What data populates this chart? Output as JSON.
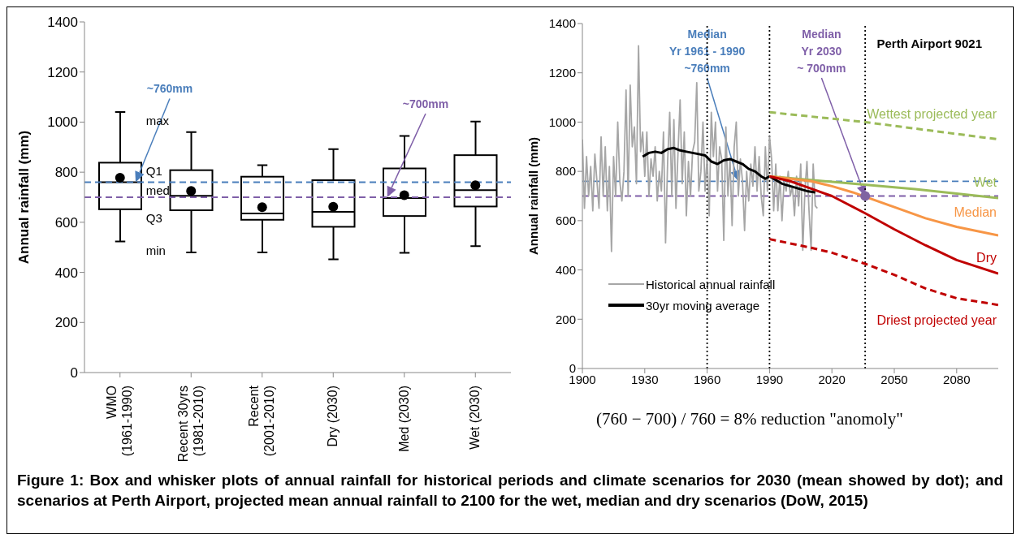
{
  "chart_data": [
    {
      "type": "box",
      "ylabel": "Annual rainfall (mm)",
      "categories": [
        "WMO\n(1961-1990)",
        "Recent 30yrs\n(1981-2010)",
        "Recent\n(2001-2010)",
        "Dry (2030)",
        "Med (2030)",
        "Wet (2030)"
      ],
      "boxes": [
        {
          "low": 523,
          "q1": 652,
          "median": 760,
          "q3": 838,
          "high": 1040
        },
        {
          "low": 480,
          "q1": 648,
          "median": 706,
          "q3": 808,
          "high": 960
        },
        {
          "low": 480,
          "q1": 610,
          "median": 635,
          "q3": 782,
          "high": 828
        },
        {
          "low": 452,
          "q1": 582,
          "median": 642,
          "q3": 768,
          "high": 892
        },
        {
          "low": 478,
          "q1": 625,
          "median": 697,
          "q3": 815,
          "high": 945
        },
        {
          "low": 505,
          "q1": 663,
          "median": 728,
          "q3": 868,
          "high": 1002
        }
      ],
      "series": [
        {
          "type": "scatter",
          "color": "#000000",
          "x": [
            "WMO\n(1961-1990)",
            "Recent 30yrs\n(1981-2010)",
            "Recent\n(2001-2010)",
            "Dry (2030)",
            "Med (2030)",
            "Wet (2030)"
          ],
          "values": [
            778,
            725,
            660,
            662,
            708,
            748
          ]
        }
      ],
      "ylim": [
        0,
        1400
      ],
      "yticks": [
        0,
        200,
        400,
        600,
        800,
        1000,
        1200,
        1400
      ],
      "ref_lines": [
        {
          "axis": "y",
          "value": 760,
          "label": "~760mm",
          "color": "#4a7ebb",
          "line_style": "dashed"
        },
        {
          "axis": "y",
          "value": 700,
          "label": "~700mm",
          "color": "#7f5fa8",
          "line_style": "dashed"
        }
      ],
      "annotations": [
        {
          "text": "max",
          "x": "WMO\n(1961-1990)",
          "y": 1040
        },
        {
          "text": "Q1",
          "x": "WMO\n(1961-1990)",
          "y": 838
        },
        {
          "text": "med",
          "x": "WMO\n(1961-1990)",
          "y": 760
        },
        {
          "text": "Q3",
          "x": "WMO\n(1961-1990)",
          "y": 652
        },
        {
          "text": "min",
          "x": "WMO\n(1961-1990)",
          "y": 523
        },
        "Figure 1: Box and whisker plots of annual rainfall for historical periods and climate scenarios for 2030 (mean showed by dot); and scenarios at Perth Airport, projected mean annual rainfall to 2100 for the wet, median and dry scenarios (DoW, 2015)"
      ]
    },
    {
      "type": "line",
      "title": "Perth Airport 9021",
      "ylabel": "Annual rainfall (mm)",
      "xlim": [
        1900,
        2100
      ],
      "xticks": [
        1900,
        1930,
        1960,
        1990,
        2020,
        2050,
        2080
      ],
      "ylim": [
        0,
        1400
      ],
      "yticks": [
        0,
        200,
        400,
        600,
        800,
        1000,
        1200,
        1400
      ],
      "legend": "bottom left",
      "series": [
        {
          "name": "Historical annual rainfall",
          "color": "#a6a6a6",
          "x": [
            1900,
            1901,
            1902,
            1903,
            1904,
            1905,
            1906,
            1907,
            1908,
            1909,
            1910,
            1911,
            1912,
            1913,
            1914,
            1915,
            1916,
            1917,
            1918,
            1919,
            1920,
            1921,
            1922,
            1923,
            1924,
            1925,
            1926,
            1927,
            1928,
            1929,
            1930,
            1931,
            1932,
            1933,
            1934,
            1935,
            1936,
            1937,
            1938,
            1939,
            1940,
            1941,
            1942,
            1943,
            1944,
            1945,
            1946,
            1947,
            1948,
            1949,
            1950,
            1951,
            1952,
            1953,
            1954,
            1955,
            1956,
            1957,
            1958,
            1959,
            1960,
            1961,
            1962,
            1963,
            1964,
            1965,
            1966,
            1967,
            1968,
            1969,
            1970,
            1971,
            1972,
            1973,
            1974,
            1975,
            1976,
            1977,
            1978,
            1979,
            1980,
            1981,
            1982,
            1983,
            1984,
            1985,
            1986,
            1987,
            1988,
            1989,
            1990,
            1991,
            1992,
            1993,
            1994,
            1995,
            1996,
            1997,
            1998,
            1999,
            2000,
            2001,
            2002,
            2003,
            2004,
            2005,
            2006,
            2007,
            2008,
            2009,
            2010,
            2011,
            2012,
            2013
          ],
          "values": [
            930,
            650,
            860,
            700,
            820,
            640,
            870,
            760,
            650,
            940,
            700,
            900,
            640,
            820,
            475,
            860,
            700,
            1000,
            760,
            680,
            800,
            1130,
            700,
            1150,
            900,
            980,
            750,
            1310,
            880,
            960,
            780,
            960,
            700,
            850,
            780,
            900,
            680,
            800,
            720,
            960,
            510,
            840,
            1040,
            700,
            1010,
            650,
            880,
            1090,
            750,
            960,
            620,
            840,
            700,
            880,
            920,
            1160,
            720,
            800,
            1000,
            720,
            860,
            620,
            1040,
            860,
            1000,
            720,
            900,
            850,
            520,
            980,
            700,
            850,
            580,
            900,
            1000,
            700,
            850,
            760,
            560,
            800,
            680,
            830,
            740,
            900,
            720,
            860,
            700,
            620,
            900,
            720,
            940,
            850,
            640,
            830,
            640,
            780,
            600,
            760,
            720,
            800,
            700,
            740,
            620,
            780,
            660,
            830,
            480,
            720,
            840,
            640,
            480,
            830,
            660,
            650
          ]
        },
        {
          "name": "30yr moving average",
          "color": "#000000",
          "x": [
            1929,
            1932,
            1935,
            1938,
            1941,
            1944,
            1947,
            1950,
            1953,
            1956,
            1959,
            1962,
            1965,
            1968,
            1971,
            1974,
            1977,
            1980,
            1983,
            1986,
            1988,
            1990,
            1993,
            1996,
            2000,
            2004,
            2008,
            2012
          ],
          "values": [
            860,
            875,
            880,
            875,
            890,
            895,
            885,
            880,
            875,
            870,
            865,
            840,
            830,
            845,
            850,
            840,
            830,
            810,
            800,
            780,
            770,
            780,
            765,
            750,
            740,
            730,
            720,
            715
          ]
        },
        {
          "name": "Wettest projected year",
          "color": "#9bbb59",
          "line_style": "dashed",
          "x": [
            1990,
            2036,
            2100
          ],
          "values": [
            1040,
            1000,
            930
          ]
        },
        {
          "name": "Wet",
          "color": "#9bbb59",
          "x": [
            1990,
            2060,
            2100
          ],
          "values": [
            780,
            728,
            692
          ]
        },
        {
          "name": "Median",
          "color": "#f79646",
          "x": [
            1990,
            2010,
            2020,
            2030,
            2050,
            2065,
            2080,
            2100
          ],
          "values": [
            780,
            760,
            740,
            715,
            655,
            610,
            575,
            540
          ]
        },
        {
          "name": "Dry",
          "color": "#c00000",
          "x": [
            1990,
            2000,
            2010,
            2020,
            2036,
            2050,
            2065,
            2080,
            2100
          ],
          "values": [
            780,
            760,
            730,
            700,
            630,
            565,
            500,
            440,
            385
          ]
        },
        {
          "name": "Driest projected year",
          "color": "#c00000",
          "line_style": "dashed",
          "x": [
            1990,
            2010,
            2020,
            2036,
            2050,
            2065,
            2080,
            2100
          ],
          "values": [
            525,
            490,
            470,
            425,
            380,
            325,
            285,
            258
          ]
        },
        {
          "type": "scatter",
          "color": "#8064a2",
          "x": [
            2036
          ],
          "values": [
            700
          ]
        }
      ],
      "ref_lines": [
        {
          "axis": "y",
          "value": 760,
          "label": "Median\nYr 1961 - 1990\n~760mm",
          "color": "#4a7ebb",
          "line_style": "dashed"
        },
        {
          "axis": "y",
          "value": 700,
          "label": "Median\nYr 2030\n~ 700mm",
          "color": "#7f5fa8",
          "line_style": "dashed"
        },
        {
          "axis": "x",
          "value": 1960,
          "color": "#000000",
          "line_style": "dotted"
        },
        {
          "axis": "x",
          "value": 1990,
          "color": "#000000",
          "line_style": "dotted"
        },
        {
          "axis": "x",
          "value": 2036,
          "color": "#000000",
          "line_style": "dotted"
        }
      ],
      "annotations": [
        "(760 − 700) / 760 = 8% reduction \"anomoly\""
      ]
    }
  ]
}
